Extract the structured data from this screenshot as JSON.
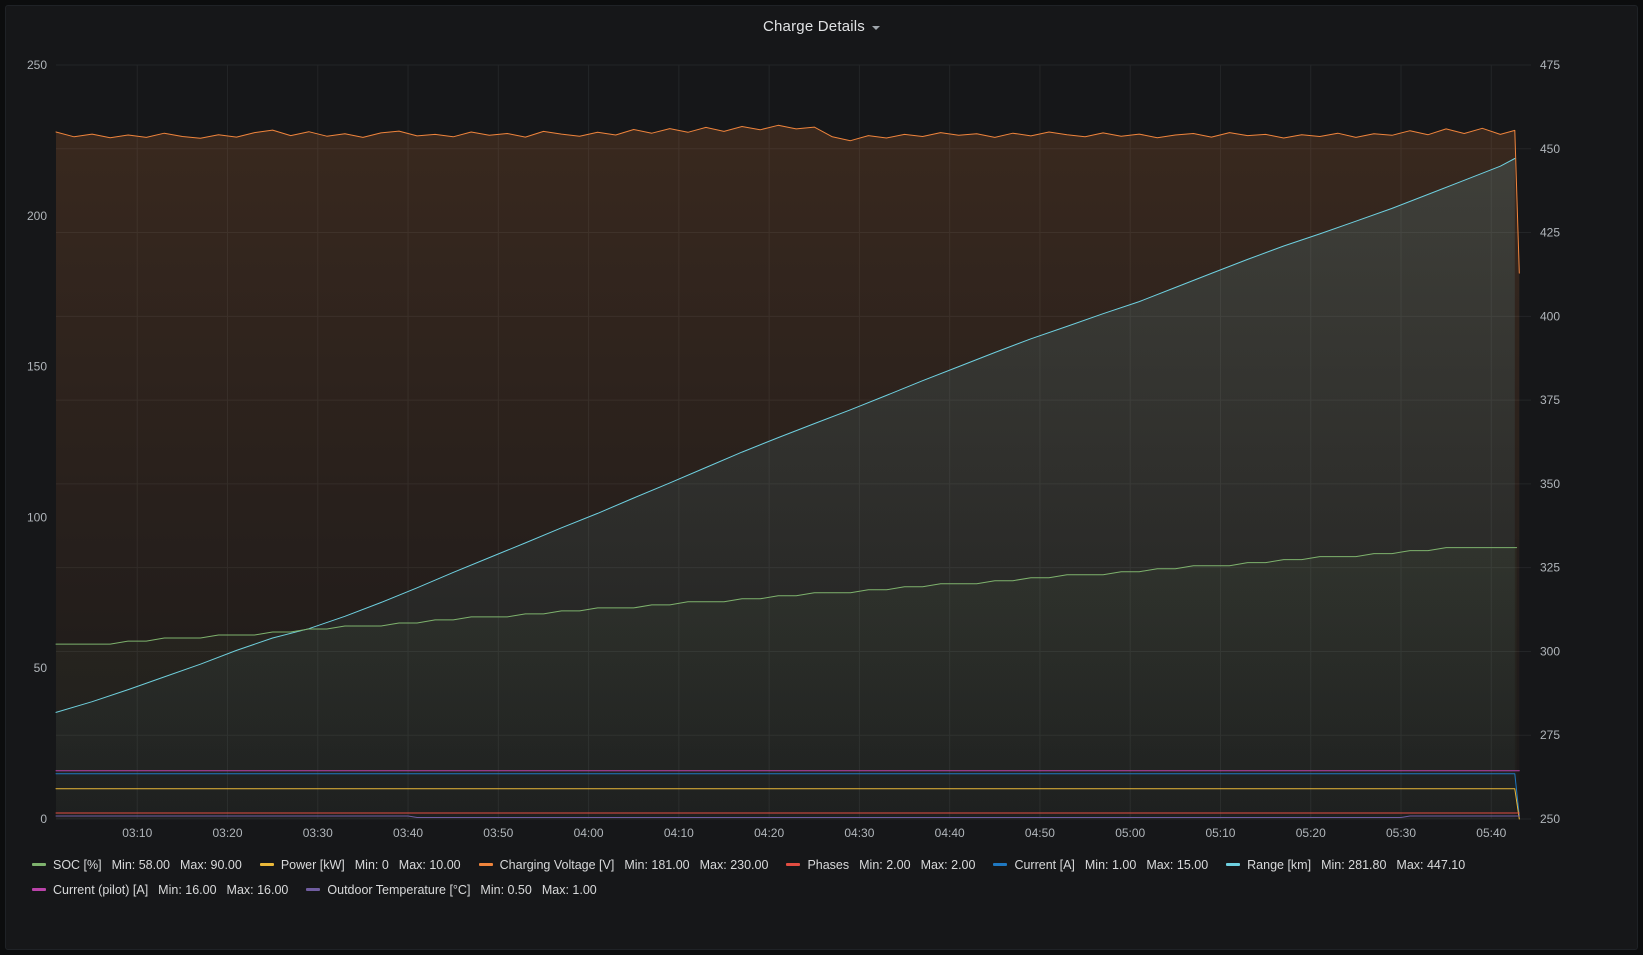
{
  "panel": {
    "title": "Charge Details"
  },
  "chart_data": {
    "type": "line",
    "title": "Charge Details",
    "x_range": [
      1,
      164.4
    ],
    "x_axis": {
      "tick_minutes": [
        10,
        20,
        30,
        40,
        50,
        60,
        70,
        80,
        90,
        100,
        110,
        120,
        130,
        140,
        150,
        160
      ],
      "tick_labels": [
        "03:10",
        "03:20",
        "03:30",
        "03:40",
        "03:50",
        "04:00",
        "04:10",
        "04:20",
        "04:30",
        "04:40",
        "04:50",
        "05:00",
        "05:10",
        "05:20",
        "05:30",
        "05:40"
      ]
    },
    "left_axis": {
      "min": 0,
      "max": 250,
      "ticks": [
        0,
        50,
        100,
        150,
        200,
        250
      ]
    },
    "right_axis": {
      "min": 250,
      "max": 475,
      "ticks": [
        250,
        275,
        300,
        325,
        350,
        375,
        400,
        425,
        450,
        475
      ]
    },
    "style": {
      "grid_color": "#232527",
      "tick_color": "#b0b5ba",
      "tick_font_size": 12
    },
    "series": [
      {
        "name": "Charging Voltage [V]",
        "color": "#EF843C",
        "axis": "left",
        "fill": 0.16,
        "width": 1,
        "x_start": 1,
        "x_step": 2,
        "y": [
          227.8,
          226.2,
          227.1,
          225.9,
          226.8,
          226.0,
          227.4,
          226.3,
          225.7,
          226.9,
          226.1,
          227.6,
          228.4,
          226.6,
          227.9,
          226.4,
          227.2,
          226.0,
          227.5,
          228.1,
          226.5,
          227.0,
          226.2,
          227.8,
          226.7,
          227.3,
          226.1,
          228.0,
          227.1,
          226.4,
          227.7,
          226.8,
          228.6,
          227.4,
          228.9,
          227.7,
          229.3,
          228.0,
          229.6,
          228.5,
          230.0,
          228.8,
          229.4,
          226.2,
          224.9,
          226.6,
          225.8,
          227.0,
          226.3,
          227.6,
          226.7,
          227.2,
          226.0,
          227.4,
          226.5,
          227.8,
          226.9,
          226.2,
          227.5,
          226.4,
          227.1,
          225.9,
          226.8,
          227.3,
          226.1,
          227.6,
          226.6,
          227.0,
          225.8,
          226.9,
          226.3,
          227.4,
          226.0,
          227.2,
          226.7,
          228.2,
          226.9,
          228.8,
          227.3,
          229.0,
          227.0
        ],
        "tail": [
          [
            162.6,
            228.3
          ],
          [
            163.1,
            181.0
          ]
        ]
      },
      {
        "name": "Range [km]",
        "color": "#6ED0E0",
        "axis": "right",
        "fill": 0.14,
        "width": 1,
        "points": [
          [
            1,
            281.8
          ],
          [
            5,
            285.0
          ],
          [
            9,
            288.6
          ],
          [
            13,
            292.4
          ],
          [
            17,
            296.2
          ],
          [
            21,
            300.3
          ],
          [
            25,
            304.0
          ],
          [
            29,
            306.8
          ],
          [
            33,
            310.5
          ],
          [
            37,
            314.6
          ],
          [
            41,
            319.0
          ],
          [
            45,
            323.6
          ],
          [
            49,
            328.0
          ],
          [
            53,
            332.4
          ],
          [
            57,
            336.9
          ],
          [
            61,
            341.2
          ],
          [
            65,
            345.8
          ],
          [
            69,
            350.3
          ],
          [
            73,
            354.9
          ],
          [
            77,
            359.5
          ],
          [
            81,
            363.8
          ],
          [
            85,
            368.0
          ],
          [
            89,
            372.1
          ],
          [
            93,
            376.4
          ],
          [
            97,
            380.8
          ],
          [
            101,
            385.0
          ],
          [
            105,
            389.2
          ],
          [
            109,
            393.3
          ],
          [
            113,
            397.0
          ],
          [
            117,
            400.8
          ],
          [
            121,
            404.4
          ],
          [
            125,
            408.6
          ],
          [
            129,
            412.8
          ],
          [
            133,
            417.0
          ],
          [
            137,
            421.0
          ],
          [
            141,
            424.6
          ],
          [
            145,
            428.4
          ],
          [
            149,
            432.2
          ],
          [
            153,
            436.4
          ],
          [
            157,
            440.6
          ],
          [
            161,
            444.8
          ],
          [
            162.6,
            447.1
          ]
        ]
      },
      {
        "name": "SOC [%]",
        "color": "#7EB26D",
        "axis": "left",
        "fill": 0.06,
        "width": 1,
        "x_start": 1,
        "x_step": 2,
        "y": [
          58,
          58,
          58,
          58,
          59,
          59,
          60,
          60,
          60,
          61,
          61,
          61,
          62,
          62,
          63,
          63,
          64,
          64,
          64,
          65,
          65,
          66,
          66,
          67,
          67,
          67,
          68,
          68,
          69,
          69,
          70,
          70,
          70,
          71,
          71,
          72,
          72,
          72,
          73,
          73,
          74,
          74,
          75,
          75,
          75,
          76,
          76,
          77,
          77,
          78,
          78,
          78,
          79,
          79,
          80,
          80,
          81,
          81,
          81,
          82,
          82,
          83,
          83,
          84,
          84,
          84,
          85,
          85,
          86,
          86,
          87,
          87,
          87,
          88,
          88,
          89,
          89,
          90,
          90,
          90,
          90
        ],
        "tail": [
          [
            162.8,
            90
          ]
        ]
      },
      {
        "name": "Current (pilot) [A]",
        "color": "#BA43A9",
        "axis": "left",
        "fill": 0,
        "width": 1,
        "points": [
          [
            1,
            16
          ],
          [
            163.1,
            16
          ]
        ]
      },
      {
        "name": "Current [A]",
        "color": "#1F78C1",
        "axis": "left",
        "fill": 0,
        "width": 1,
        "points": [
          [
            1,
            15
          ],
          [
            162.6,
            15
          ],
          [
            163.1,
            1
          ]
        ]
      },
      {
        "name": "Power [kW]",
        "color": "#EAB839",
        "axis": "left",
        "fill": 0,
        "width": 1,
        "points": [
          [
            1,
            10
          ],
          [
            162.6,
            10
          ],
          [
            163.1,
            0
          ]
        ]
      },
      {
        "name": "Phases",
        "color": "#E24D42",
        "axis": "left",
        "fill": 0,
        "width": 1,
        "points": [
          [
            1,
            2
          ],
          [
            163.1,
            2
          ]
        ]
      },
      {
        "name": "Outdoor Temperature [°C]",
        "color": "#705DA0",
        "axis": "left",
        "fill": 0,
        "width": 1,
        "points": [
          [
            1,
            1
          ],
          [
            40,
            1
          ],
          [
            41,
            0.5
          ],
          [
            150,
            0.5
          ],
          [
            151,
            1
          ],
          [
            163.1,
            1
          ]
        ]
      }
    ]
  },
  "legend": {
    "rows": [
      [
        0,
        1,
        2,
        3,
        4,
        5
      ],
      [
        6,
        7
      ]
    ],
    "items": [
      {
        "label": "SOC [%]",
        "min": "Min: 58.00",
        "max": "Max: 90.00",
        "color": "#7EB26D"
      },
      {
        "label": "Power [kW]",
        "min": "Min: 0",
        "max": "Max: 10.00",
        "color": "#EAB839"
      },
      {
        "label": "Charging Voltage [V]",
        "min": "Min: 181.00",
        "max": "Max: 230.00",
        "color": "#EF843C"
      },
      {
        "label": "Phases",
        "min": "Min: 2.00",
        "max": "Max: 2.00",
        "color": "#E24D42"
      },
      {
        "label": "Current [A]",
        "min": "Min: 1.00",
        "max": "Max: 15.00",
        "color": "#1F78C1"
      },
      {
        "label": "Range [km]",
        "min": "Min: 281.80",
        "max": "Max: 447.10",
        "color": "#6ED0E0"
      },
      {
        "label": "Current (pilot) [A]",
        "min": "Min: 16.00",
        "max": "Max: 16.00",
        "color": "#BA43A9"
      },
      {
        "label": "Outdoor Temperature [°C]",
        "min": "Min: 0.50",
        "max": "Max: 1.00",
        "color": "#705DA0"
      }
    ]
  }
}
